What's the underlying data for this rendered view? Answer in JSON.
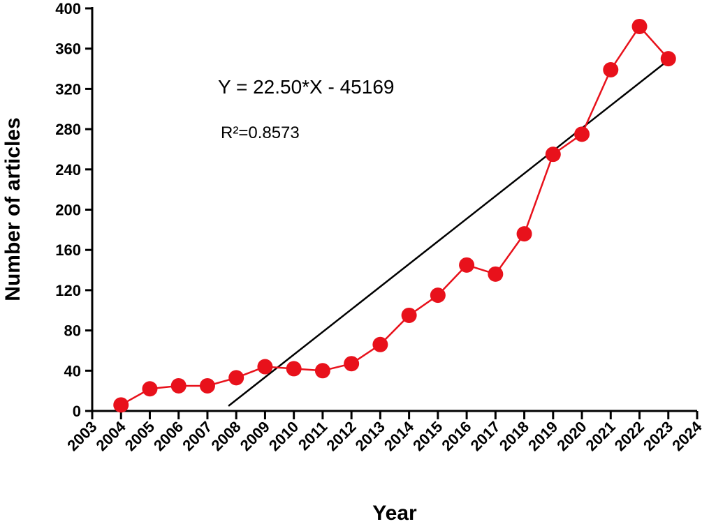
{
  "chart_data": {
    "type": "line",
    "title": "",
    "xlabel": "Year",
    "ylabel": "Number of articles",
    "xlim": [
      2003,
      2024
    ],
    "ylim": [
      0,
      400
    ],
    "x_ticks": [
      "2003",
      "2004",
      "2005",
      "2006",
      "2007",
      "2008",
      "2009",
      "2010",
      "2011",
      "2012",
      "2013",
      "2014",
      "2015",
      "2016",
      "2017",
      "2018",
      "2019",
      "2020",
      "2021",
      "2022",
      "2023",
      "2024"
    ],
    "y_ticks": [
      0,
      40,
      80,
      120,
      160,
      200,
      240,
      280,
      320,
      360,
      400
    ],
    "grid": false,
    "series": [
      {
        "name": "Articles",
        "color": "#e8111b",
        "x": [
          2004,
          2005,
          2006,
          2007,
          2008,
          2009,
          2010,
          2011,
          2012,
          2013,
          2014,
          2015,
          2016,
          2017,
          2018,
          2019,
          2020,
          2021,
          2022,
          2023
        ],
        "values": [
          6,
          22,
          25,
          25,
          33,
          44,
          42,
          40,
          47,
          66,
          95,
          115,
          145,
          136,
          176,
          255,
          275,
          339,
          382,
          350
        ]
      }
    ],
    "trendline": {
      "color": "#000000",
      "slope": 22.5,
      "intercept": -45169,
      "x_start": 2007.73,
      "x_end": 2023
    },
    "annotations": {
      "equation": "Y = 22.50*X - 45169",
      "r_squared": "R²=0.8573"
    }
  }
}
